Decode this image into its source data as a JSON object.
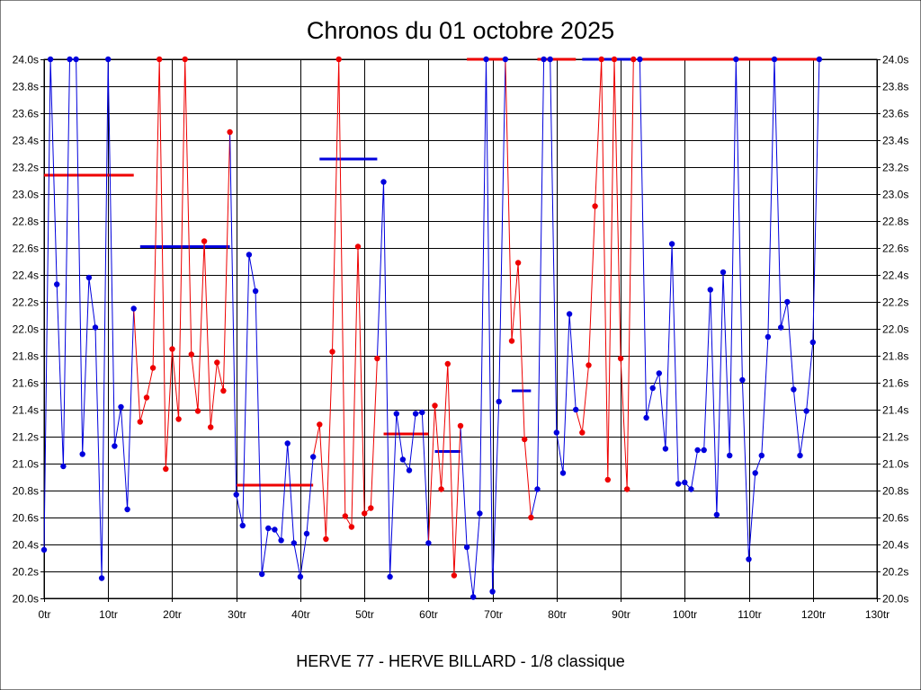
{
  "chart_data": {
    "type": "line",
    "title": "Chronos du 01 octobre 2025",
    "subtitle": "HERVE 77 - HERVE BILLARD - 1/8 classique",
    "xlabel": "",
    "ylabel": "",
    "xlim": [
      0,
      130
    ],
    "ylim": [
      20.0,
      24.0
    ],
    "x_ticks": [
      "0tr",
      "10tr",
      "20tr",
      "30tr",
      "40tr",
      "50tr",
      "60tr",
      "70tr",
      "80tr",
      "90tr",
      "100tr",
      "110tr",
      "120tr",
      "130tr"
    ],
    "y_ticks": [
      "20.0s",
      "20.2s",
      "20.4s",
      "20.6s",
      "20.8s",
      "21.0s",
      "21.2s",
      "21.4s",
      "21.6s",
      "21.8s",
      "22.0s",
      "22.2s",
      "22.4s",
      "22.6s",
      "22.8s",
      "23.0s",
      "23.2s",
      "23.4s",
      "23.6s",
      "23.8s",
      "24.0s"
    ],
    "grid": true,
    "colors": {
      "blue": "#0000dd",
      "red": "#ee0000"
    },
    "series": [
      {
        "color": "blue",
        "points": [
          [
            0,
            20.36
          ],
          [
            1,
            24.0
          ],
          [
            2,
            22.33
          ],
          [
            3,
            20.98
          ],
          [
            4,
            24.0
          ],
          [
            5,
            24.0
          ],
          [
            6,
            21.07
          ],
          [
            7,
            22.38
          ],
          [
            8,
            22.01
          ],
          [
            9,
            20.15
          ],
          [
            10,
            24.0
          ],
          [
            11,
            21.13
          ],
          [
            12,
            21.42
          ],
          [
            13,
            20.66
          ],
          [
            14,
            22.15
          ]
        ]
      },
      {
        "color": "red",
        "points": [
          [
            15,
            21.31
          ],
          [
            16,
            21.49
          ],
          [
            17,
            21.71
          ],
          [
            18,
            24.0
          ],
          [
            19,
            20.96
          ],
          [
            20,
            21.85
          ],
          [
            21,
            21.33
          ],
          [
            22,
            24.0
          ],
          [
            23,
            21.81
          ],
          [
            24,
            21.39
          ],
          [
            25,
            22.65
          ],
          [
            26,
            21.27
          ],
          [
            27,
            21.75
          ],
          [
            28,
            21.54
          ],
          [
            29,
            23.46
          ]
        ]
      },
      {
        "color": "blue",
        "points": [
          [
            30,
            20.77
          ],
          [
            31,
            20.54
          ],
          [
            32,
            22.55
          ],
          [
            33,
            22.28
          ],
          [
            34,
            20.18
          ],
          [
            35,
            20.52
          ],
          [
            36,
            20.51
          ],
          [
            37,
            20.43
          ],
          [
            38,
            21.15
          ],
          [
            39,
            20.41
          ],
          [
            40,
            20.16
          ],
          [
            41,
            20.48
          ],
          [
            42,
            21.05
          ]
        ]
      },
      {
        "color": "red",
        "points": [
          [
            43,
            21.29
          ],
          [
            44,
            20.44
          ],
          [
            45,
            21.83
          ],
          [
            46,
            24.0
          ],
          [
            47,
            20.61
          ],
          [
            48,
            20.53
          ],
          [
            49,
            22.61
          ],
          [
            50,
            20.63
          ],
          [
            51,
            20.67
          ],
          [
            52,
            21.78
          ]
        ]
      },
      {
        "color": "blue",
        "points": [
          [
            53,
            23.09
          ],
          [
            54,
            20.16
          ],
          [
            55,
            21.37
          ],
          [
            56,
            21.03
          ],
          [
            57,
            20.95
          ],
          [
            58,
            21.37
          ],
          [
            59,
            21.38
          ],
          [
            60,
            20.41
          ]
        ]
      },
      {
        "color": "red",
        "points": [
          [
            61,
            21.43
          ],
          [
            62,
            20.81
          ],
          [
            63,
            21.74
          ],
          [
            64,
            20.17
          ],
          [
            65,
            21.28
          ]
        ]
      },
      {
        "color": "blue",
        "points": [
          [
            66,
            20.38
          ],
          [
            67,
            20.01
          ],
          [
            68,
            20.63
          ],
          [
            69,
            24.0
          ],
          [
            70,
            20.05
          ],
          [
            71,
            21.46
          ],
          [
            72,
            24.0
          ]
        ]
      },
      {
        "color": "red",
        "points": [
          [
            73,
            21.91
          ],
          [
            74,
            22.49
          ],
          [
            75,
            21.18
          ],
          [
            76,
            20.6
          ]
        ]
      },
      {
        "color": "blue",
        "points": [
          [
            77,
            20.81
          ],
          [
            78,
            24.0
          ],
          [
            79,
            24.0
          ],
          [
            80,
            21.23
          ],
          [
            81,
            20.93
          ],
          [
            82,
            22.11
          ],
          [
            83,
            21.4
          ]
        ]
      },
      {
        "color": "red",
        "points": [
          [
            84,
            21.23
          ],
          [
            85,
            21.73
          ],
          [
            86,
            22.91
          ],
          [
            87,
            24.0
          ],
          [
            88,
            20.88
          ],
          [
            89,
            24.0
          ],
          [
            90,
            21.78
          ],
          [
            91,
            20.81
          ],
          [
            92,
            24.0
          ]
        ]
      },
      {
        "color": "blue",
        "points": [
          [
            93,
            24.0
          ],
          [
            94,
            21.34
          ],
          [
            95,
            21.56
          ],
          [
            96,
            21.67
          ],
          [
            97,
            21.11
          ],
          [
            98,
            22.63
          ],
          [
            99,
            20.85
          ],
          [
            100,
            20.86
          ],
          [
            101,
            20.81
          ],
          [
            102,
            21.1
          ],
          [
            103,
            21.1
          ],
          [
            104,
            22.29
          ],
          [
            105,
            20.62
          ],
          [
            106,
            22.42
          ],
          [
            107,
            21.06
          ],
          [
            108,
            24.0
          ],
          [
            109,
            21.62
          ],
          [
            110,
            20.29
          ],
          [
            111,
            20.93
          ],
          [
            112,
            21.06
          ],
          [
            113,
            21.94
          ],
          [
            114,
            24.0
          ],
          [
            115,
            22.01
          ],
          [
            116,
            22.2
          ],
          [
            117,
            21.55
          ],
          [
            118,
            21.06
          ],
          [
            119,
            21.39
          ],
          [
            120,
            21.9
          ],
          [
            121,
            24.0
          ]
        ]
      }
    ],
    "average_lines": [
      {
        "color": "red",
        "x": [
          0,
          14
        ],
        "y": 23.14
      },
      {
        "color": "blue",
        "x": [
          15,
          29
        ],
        "y": 22.61
      },
      {
        "color": "red",
        "x": [
          30,
          42
        ],
        "y": 20.84
      },
      {
        "color": "blue",
        "x": [
          43,
          52
        ],
        "y": 23.26
      },
      {
        "color": "red",
        "x": [
          53,
          60
        ],
        "y": 21.22
      },
      {
        "color": "blue",
        "x": [
          61,
          65
        ],
        "y": 21.09
      },
      {
        "color": "red",
        "x": [
          66,
          72
        ],
        "y": 24.0
      },
      {
        "color": "blue",
        "x": [
          73,
          76
        ],
        "y": 21.54
      },
      {
        "color": "red",
        "x": [
          77,
          83
        ],
        "y": 24.0
      },
      {
        "color": "blue",
        "x": [
          84,
          92
        ],
        "y": 24.0
      },
      {
        "color": "red",
        "x": [
          93,
          121
        ],
        "y": 24.0
      }
    ]
  }
}
